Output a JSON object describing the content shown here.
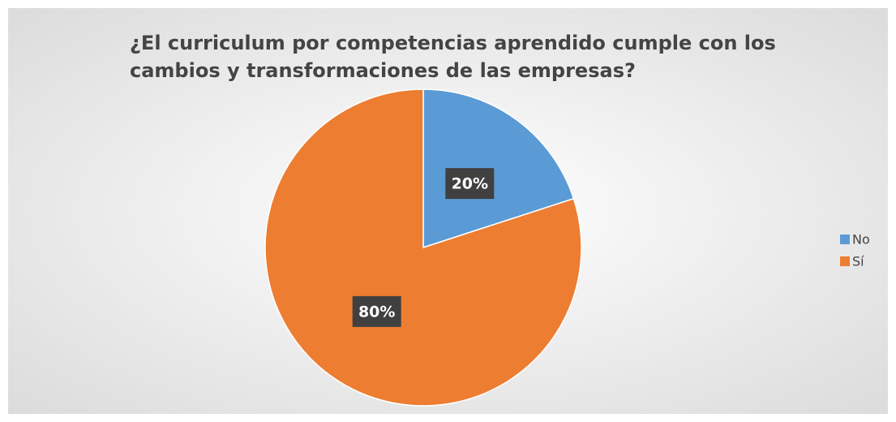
{
  "chart_data": {
    "type": "pie",
    "title": "¿El curriculum por competencias aprendido cumple con los cambios y transformaciones de las empresas?",
    "categories": [
      "No",
      "Sí"
    ],
    "values": [
      20,
      80
    ],
    "value_labels": [
      "20%",
      "80%"
    ],
    "colors": [
      "#5b9bd5",
      "#ed7d31"
    ],
    "legend": "right"
  }
}
